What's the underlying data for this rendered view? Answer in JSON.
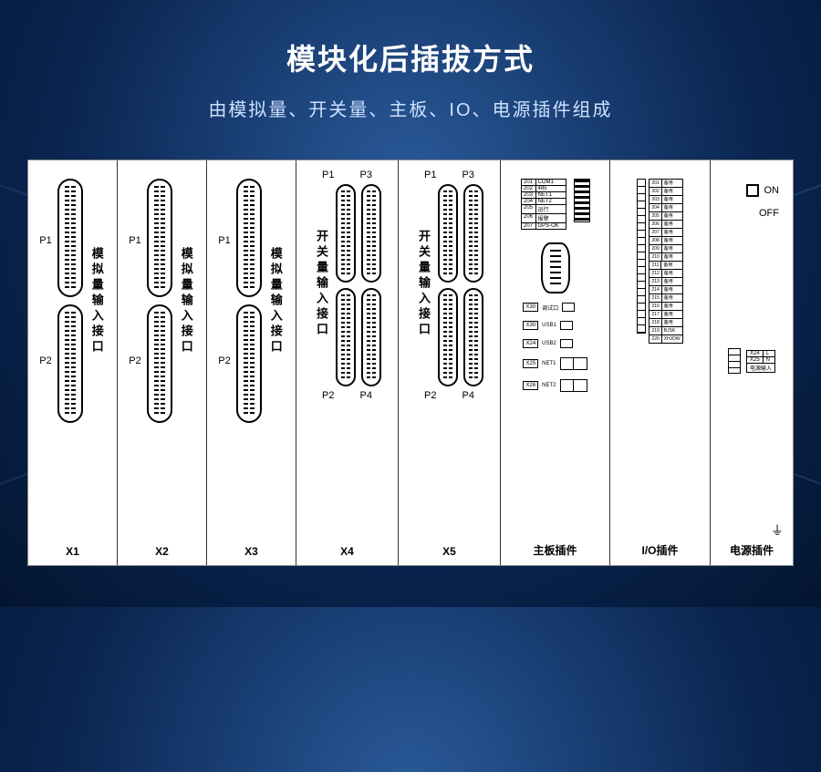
{
  "title": "模块化后插拔方式",
  "subtitle": "由模拟量、开关量、主板、IO、电源插件组成",
  "colors": {
    "bg_center": "#2a5a9a",
    "bg_outer": "#031530",
    "panel_bg": "#ffffff",
    "line": "#000000",
    "title_color": "#ffffff",
    "subtitle_color": "#cce0ff"
  },
  "slots": {
    "analog": [
      {
        "id": "X1",
        "p1": "P1",
        "p2": "P2",
        "vlabel": "模拟量输入接口"
      },
      {
        "id": "X2",
        "p1": "P1",
        "p2": "P2",
        "vlabel": "模拟量输入接口"
      },
      {
        "id": "X3",
        "p1": "P1",
        "p2": "P2",
        "vlabel": "模拟量输入接口"
      }
    ],
    "switch": [
      {
        "id": "X4",
        "tl": "P1",
        "tr": "P3",
        "bl": "P2",
        "br": "P4",
        "vlabel": "开关量输入接口"
      },
      {
        "id": "X5",
        "tl": "P1",
        "tr": "P3",
        "bl": "P2",
        "br": "P4",
        "vlabel": "开关量输入接口"
      }
    ],
    "mainboard": {
      "label": "主板插件",
      "leds": [
        [
          "201",
          "COM1"
        ],
        [
          "202",
          "485"
        ],
        [
          "203",
          "NET1"
        ],
        [
          "204",
          "NET2"
        ],
        [
          "205",
          "运行"
        ],
        [
          "206",
          "报警"
        ],
        [
          "207",
          "GPS-OK"
        ]
      ],
      "ports": [
        {
          "tag": "X30",
          "text": "调试口"
        },
        {
          "tag": "X30",
          "text": "USB1"
        },
        {
          "tag": "X24",
          "text": "USB2"
        },
        {
          "tag": "X25",
          "text": "NET1"
        },
        {
          "tag": "X26",
          "text": "NET2"
        }
      ]
    },
    "io": {
      "label": "I/O插件",
      "rows": [
        [
          "201",
          "备用"
        ],
        [
          "202",
          "备用"
        ],
        [
          "203",
          "备用"
        ],
        [
          "204",
          "备用"
        ],
        [
          "205",
          "备用"
        ],
        [
          "206",
          "备用"
        ],
        [
          "207",
          "备用"
        ],
        [
          "208",
          "备用"
        ],
        [
          "209",
          "备用"
        ],
        [
          "210",
          "备用"
        ],
        [
          "211",
          "备用"
        ],
        [
          "212",
          "备用"
        ],
        [
          "213",
          "备用"
        ],
        [
          "214",
          "备用"
        ],
        [
          "215",
          "备用"
        ],
        [
          "216",
          "备用"
        ],
        [
          "217",
          "备用"
        ],
        [
          "218",
          "备用"
        ],
        [
          "219",
          "BJSK"
        ],
        [
          "220",
          "XHJDW"
        ]
      ]
    },
    "power": {
      "label": "电源插件",
      "on": "ON",
      "off": "OFF",
      "terminals": [
        [
          "X24",
          "L"
        ],
        [
          "X25",
          "N"
        ],
        [
          "电源输入",
          ""
        ]
      ]
    }
  }
}
